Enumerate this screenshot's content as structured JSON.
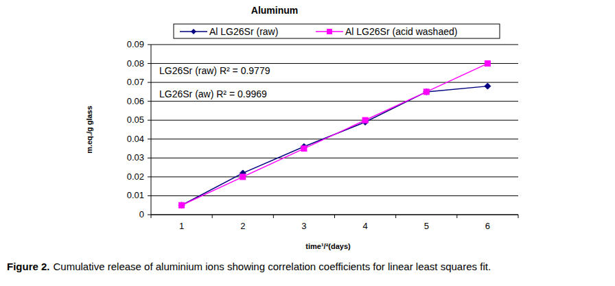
{
  "chart_data": {
    "type": "line",
    "title": "Aluminum",
    "xlabel": "time¹/²(days)",
    "ylabel": "m.eq./g glass",
    "categories": [
      1,
      2,
      3,
      4,
      5,
      6
    ],
    "series": [
      {
        "name": "Al LG26Sr (raw)",
        "color": "#000080",
        "marker": "diamond",
        "values": [
          0.005,
          0.022,
          0.036,
          0.049,
          0.065,
          0.068
        ]
      },
      {
        "name": "Al LG26Sr (acid washaed)",
        "color": "#ff00ff",
        "marker": "square",
        "values": [
          0.005,
          0.02,
          0.035,
          0.05,
          0.065,
          0.08
        ]
      }
    ],
    "ylim": [
      0,
      0.09
    ],
    "yticks": [
      0,
      0.01,
      0.02,
      0.03,
      0.04,
      0.05,
      0.06,
      0.07,
      0.08,
      0.09
    ],
    "grid": true,
    "legend": "top",
    "annotations": [
      "LG26Sr (raw) R² = 0.9779",
      "LG26Sr (aw) R² = 0.9969"
    ],
    "caption": {
      "label": "Figure 2.",
      "text": "Cumulative release of aluminium ions showing correlation coefficients for linear least squares fit."
    }
  }
}
